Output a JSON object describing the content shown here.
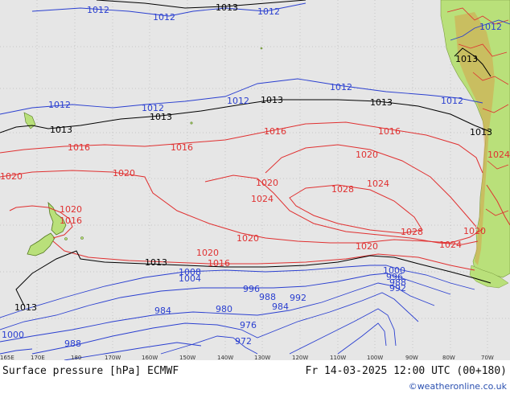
{
  "map": {
    "title": "Surface pressure [hPa] ECMWF",
    "valid_time": "Fr 14-03-2025 12:00 UTC (00+180)",
    "credit": "©weatheronline.co.uk",
    "colors": {
      "ocean": "#e6e6e6",
      "land": "#b9e07a",
      "high_isobar": "#e03030",
      "ref_isobar": "#000000",
      "low_isobar": "#2a3fd0",
      "border": "#e03030",
      "grid": "#bdbdbd"
    },
    "longitude_ticks": [
      "165E",
      "170E",
      "180",
      "170W",
      "160W",
      "150W",
      "140W",
      "130W",
      "120W",
      "110W",
      "100W",
      "90W",
      "80W",
      "70W"
    ],
    "isobar_labels": {
      "l1012a": "1012",
      "l1012b": "1012",
      "l1012c": "1012",
      "l1012d": "1012",
      "l1012e": "1012",
      "l1012f": "1012",
      "l1012g": "1012",
      "l1012h": "1012",
      "l1012i": "1012",
      "l1013a": "1013",
      "l1013b": "1013",
      "l1013c": "1013",
      "l1013d": "1013",
      "l1013e": "1013",
      "l1013f": "1013",
      "l1013g": "1013",
      "l1013h": "1013",
      "l1013i": "1013",
      "l1016a": "1016",
      "l1016b": "1016",
      "l1016c": "1016",
      "l1016d": "1016",
      "l1016e": "1016",
      "l1016f": "1016",
      "l1020a": "1020",
      "l1020b": "1020",
      "l1020c": "1020",
      "l1020d": "1020",
      "l1020e": "1020",
      "l1020f": "1020",
      "l1020g": "1020",
      "l1020h": "1020",
      "l1020i": "1020",
      "l1024a": "1024",
      "l1024b": "1024",
      "l1024c": "1024",
      "l1024d": "1024",
      "l1028a": "1028",
      "l1028b": "1028",
      "l1008": "1008",
      "l1004": "1004",
      "l1000a": "1000",
      "l1000b": "1000",
      "l996a": "996",
      "l996b": "996",
      "l992a": "992",
      "l992b": "992",
      "l988a": "988",
      "l988b": "988",
      "l988c": "988",
      "l984a": "984",
      "l984b": "984",
      "l980": "980",
      "l976": "976",
      "l972": "972"
    }
  }
}
